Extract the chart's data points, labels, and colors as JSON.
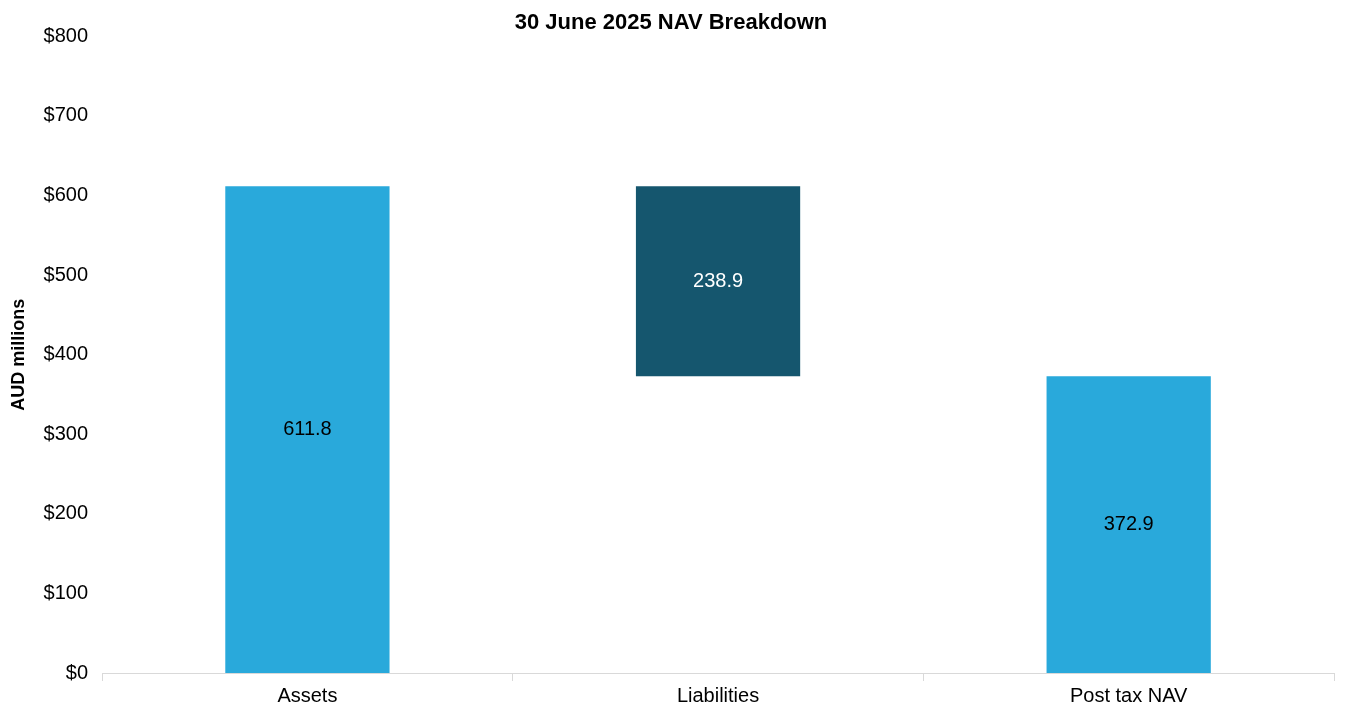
{
  "chart_data": {
    "type": "bar",
    "title": "30 June 2025 NAV Breakdown",
    "ylabel": "AUD millions",
    "categories": [
      "Assets",
      "Liabilities",
      "Post tax NAV"
    ],
    "values": [
      611.8,
      238.9,
      372.9
    ],
    "base": [
      0,
      372.9,
      0
    ],
    "colors": [
      "#29a9db",
      "#15566e",
      "#29a9db"
    ],
    "ylim": [
      0,
      800
    ],
    "yticks": [
      {
        "value": 0,
        "label": "$0"
      },
      {
        "value": 100,
        "label": "$100"
      },
      {
        "value": 200,
        "label": "$200"
      },
      {
        "value": 300,
        "label": "$300"
      },
      {
        "value": 400,
        "label": "$400"
      },
      {
        "value": 500,
        "label": "$500"
      },
      {
        "value": 600,
        "label": "$600"
      },
      {
        "value": 700,
        "label": "$700"
      },
      {
        "value": 800,
        "label": "$800"
      }
    ],
    "grid": false,
    "legend": false,
    "data_labels": true
  }
}
